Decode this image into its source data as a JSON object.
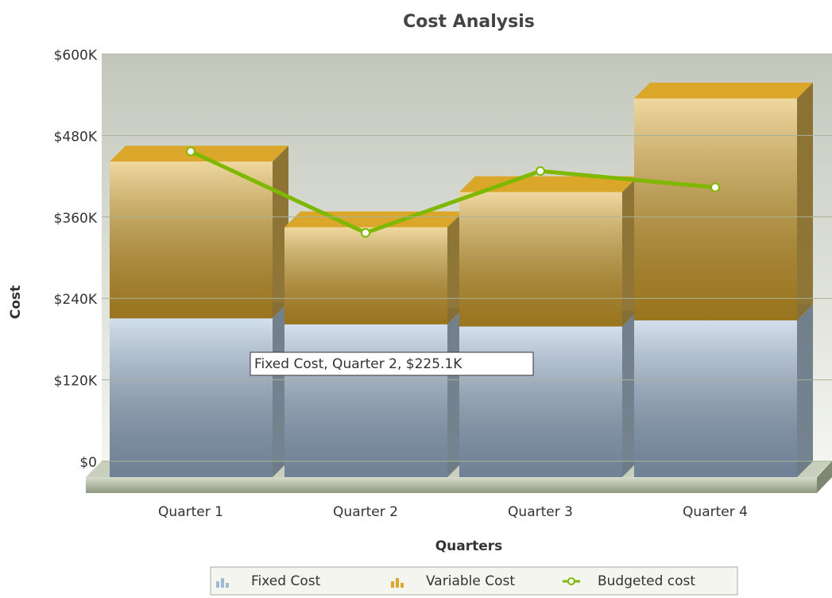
{
  "chart_data": {
    "type": "stacked_bar_line",
    "title": "Cost Analysis",
    "x_label": "Quarters",
    "y_label": "Cost",
    "categories": [
      "Quarter 1",
      "Quarter 2",
      "Quarter 3",
      "Quarter 4"
    ],
    "series": [
      {
        "name": "Fixed Cost",
        "color": "#9fb9d6",
        "values": [
          234000,
          225100,
          222000,
          231000
        ]
      },
      {
        "name": "Variable Cost",
        "color": "#dba72a",
        "values": [
          231000,
          143000,
          198000,
          327000
        ]
      },
      {
        "name": "Budgeted cost",
        "color": "#7fb800",
        "type": "line",
        "values": [
          480000,
          360000,
          451000,
          427000
        ]
      }
    ],
    "ylim": [
      0,
      600000
    ],
    "yticks": [
      {
        "value": 0,
        "label": "$0"
      },
      {
        "value": 120000,
        "label": "$120K"
      },
      {
        "value": 240000,
        "label": "$240K"
      },
      {
        "value": 360000,
        "label": "$360K"
      },
      {
        "value": 480000,
        "label": "$480K"
      },
      {
        "value": 600000,
        "label": "$600K"
      }
    ],
    "grid": true,
    "annotation": "Fixed Cost, Quarter 2, $225.1K"
  }
}
